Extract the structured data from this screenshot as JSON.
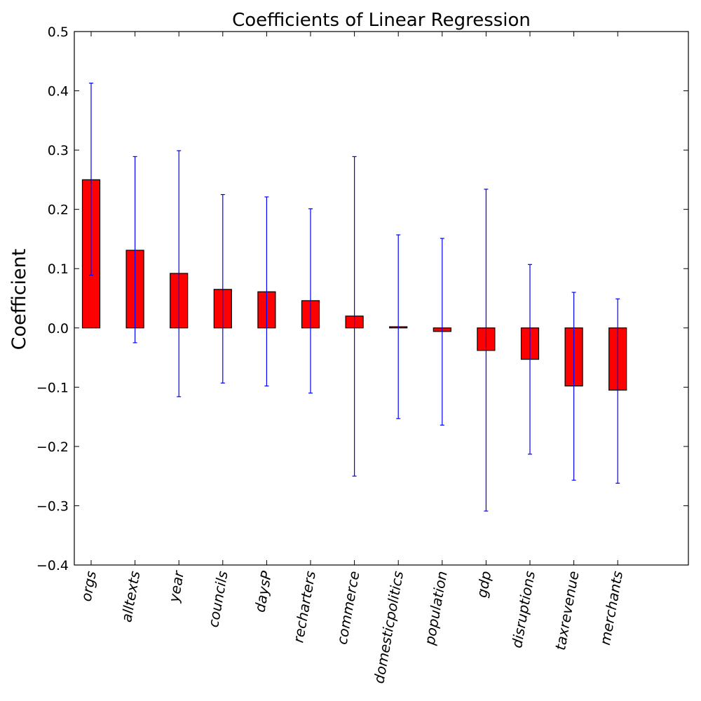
{
  "chart_data": {
    "type": "bar",
    "title": "Coefficients of Linear Regression",
    "xlabel": "",
    "ylabel": "Coefficient",
    "ylim": [
      -0.4,
      0.5
    ],
    "yticks": [
      -0.4,
      -0.3,
      -0.2,
      -0.1,
      0.0,
      0.1,
      0.2,
      0.3,
      0.4,
      0.5
    ],
    "ytick_labels": [
      "−0.4",
      "−0.3",
      "−0.2",
      "−0.1",
      "0.0",
      "0.1",
      "0.2",
      "0.3",
      "0.4",
      "0.5"
    ],
    "grid": false,
    "categories": [
      "orgs",
      "alltexts",
      "year",
      "councils",
      "daysP",
      "recharters",
      "commerce",
      "domesticpolitics",
      "population",
      "gdp",
      "disruptions",
      "taxrevenue",
      "merchants"
    ],
    "values": [
      0.25,
      0.131,
      0.092,
      0.065,
      0.061,
      0.046,
      0.02,
      0.002,
      -0.006,
      -0.038,
      -0.053,
      -0.098,
      -0.105
    ],
    "error_low": [
      0.089,
      -0.025,
      -0.116,
      -0.093,
      -0.098,
      -0.11,
      -0.25,
      -0.153,
      -0.164,
      -0.309,
      -0.213,
      -0.257,
      -0.262
    ],
    "error_high": [
      0.413,
      0.289,
      0.299,
      0.225,
      0.221,
      0.201,
      0.289,
      0.157,
      0.151,
      0.234,
      0.107,
      0.06,
      0.049
    ],
    "bar_color": "#ff0000",
    "error_color": "#0000ff"
  }
}
